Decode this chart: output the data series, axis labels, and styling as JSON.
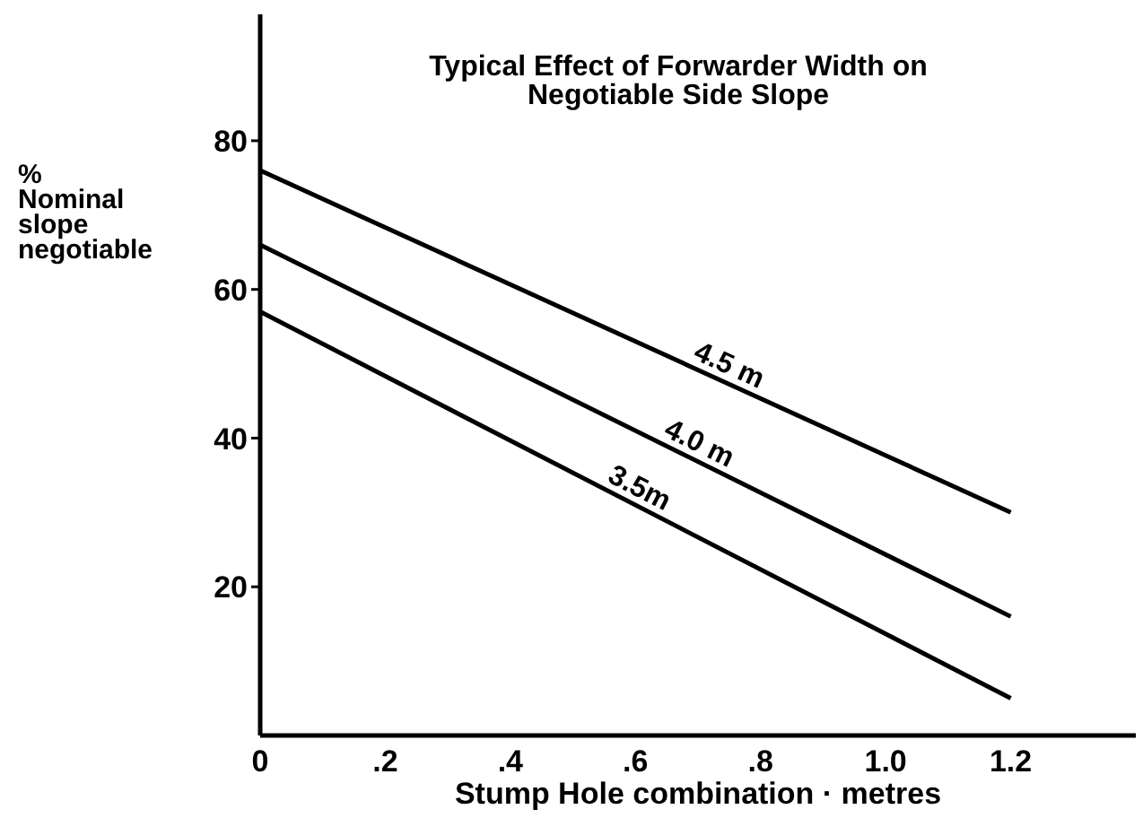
{
  "chart_data": {
    "type": "line",
    "title": "Typical Effect of Forwarder Width on Negotiable Side Slope",
    "xlabel": "Stump Hole combination · metres",
    "ylabel": "% Nominal slope negotiable",
    "x": [
      0,
      1.2
    ],
    "series": [
      {
        "name": "4.5 m",
        "color": "#000000",
        "values": [
          76,
          30
        ]
      },
      {
        "name": "4.0 m",
        "color": "#000000",
        "values": [
          66,
          16
        ]
      },
      {
        "name": "3.5m",
        "color": "#000000",
        "values": [
          57,
          5
        ]
      }
    ],
    "xlim": [
      0,
      1.4
    ],
    "xticks": [
      {
        "value": 0,
        "label": "0"
      },
      {
        "value": 0.2,
        "label": ".2"
      },
      {
        "value": 0.4,
        "label": ".4"
      },
      {
        "value": 0.6,
        "label": ".6"
      },
      {
        "value": 0.8,
        "label": ".8"
      },
      {
        "value": 1,
        "label": "1.0"
      },
      {
        "value": 1.2,
        "label": "1.2"
      }
    ],
    "ylim": [
      0,
      97
    ],
    "yticks": [
      20,
      40,
      60,
      80
    ],
    "grid": false,
    "legend": false
  }
}
